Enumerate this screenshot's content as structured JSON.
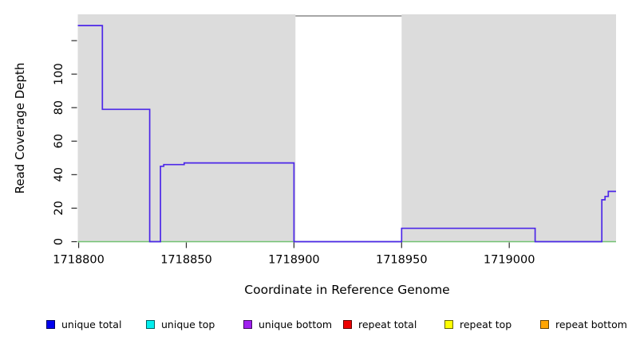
{
  "figure": {
    "background": "#FFFFFF",
    "shaded_fill": "#DCDCDC",
    "gap_border_color": "#8A8A8A",
    "tick_color": "#2B2B2B",
    "text_color": "#000000"
  },
  "chart_data": {
    "type": "line",
    "title": "",
    "xlabel": "Coordinate in Reference Genome",
    "ylabel": "Read Coverage Depth",
    "xlim": [
      1718799.6,
      1719049.6
    ],
    "ylim": [
      0,
      135.7
    ],
    "grid": false,
    "x_ticks": [
      {
        "v": 1718800,
        "label": "1718800"
      },
      {
        "v": 1718850,
        "label": "1718850"
      },
      {
        "v": 1718900,
        "label": "1718900"
      },
      {
        "v": 1718950,
        "label": "1718950"
      },
      {
        "v": 1719000,
        "label": "1719000"
      }
    ],
    "y_ticks": [
      {
        "v": 0,
        "label": "0"
      },
      {
        "v": 20,
        "label": "20"
      },
      {
        "v": 40,
        "label": "40"
      },
      {
        "v": 60,
        "label": "60"
      },
      {
        "v": 80,
        "label": "80"
      },
      {
        "v": 100,
        "label": "100"
      },
      {
        "v": 120,
        "label": ""
      }
    ],
    "shaded_regions": [
      [
        1718799.6,
        1718900.7
      ],
      [
        1718950.0,
        1719049.6
      ]
    ],
    "unshaded_gap": [
      1718900.7,
      1718950.0
    ],
    "series": [
      {
        "name": "coverage-step-line",
        "color": "#4C27E8",
        "steps": [
          [
            1718799.6,
            129
          ],
          [
            1718811.0,
            79
          ],
          [
            1718833.0,
            0
          ],
          [
            1718838.0,
            45
          ],
          [
            1718839.5,
            46
          ],
          [
            1718849.0,
            47
          ],
          [
            1718900.0,
            0
          ],
          [
            1718950.0,
            8
          ],
          [
            1719012.0,
            0
          ],
          [
            1719043.0,
            25
          ],
          [
            1719044.5,
            27
          ],
          [
            1719046.0,
            30
          ],
          [
            1719049.6,
            30
          ]
        ]
      },
      {
        "name": "zero-baseline",
        "color": "#72C172",
        "y": 0
      }
    ],
    "legend_position": "bottom",
    "legend": [
      {
        "label": "unique total",
        "color": "#0000EE"
      },
      {
        "label": "unique top",
        "color": "#00EEEE"
      },
      {
        "label": "unique bottom",
        "color": "#A020F0"
      },
      {
        "label": "repeat total",
        "color": "#EE0000"
      },
      {
        "label": "repeat top",
        "color": "#FFFF00"
      },
      {
        "label": "repeat bottom",
        "color": "#FFA500"
      }
    ]
  }
}
